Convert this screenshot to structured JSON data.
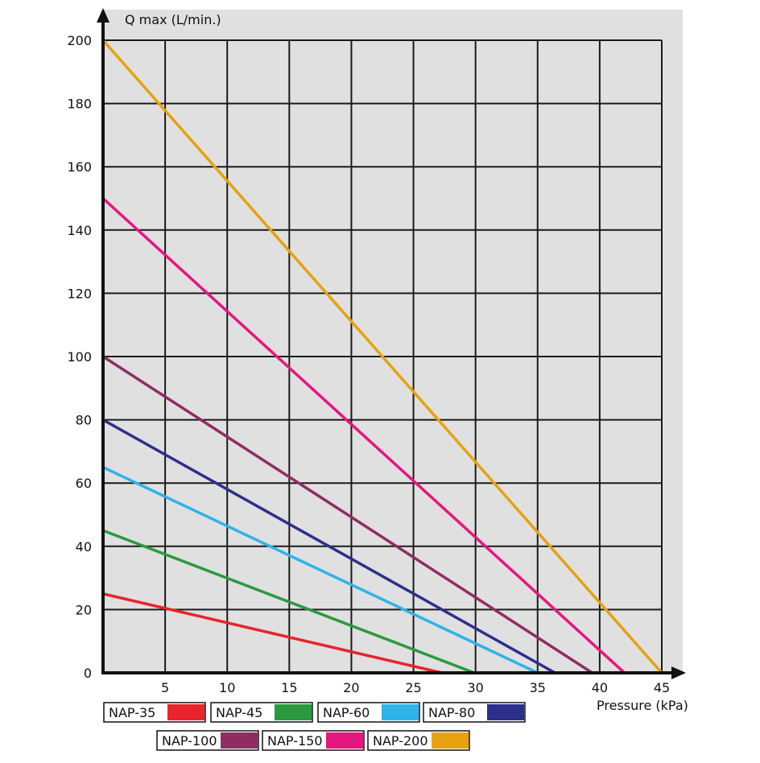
{
  "chart_data": {
    "type": "line",
    "title": "",
    "xlabel": "Pressure (kPa)",
    "ylabel": "Q max (L/min.)",
    "xlim": [
      0,
      45
    ],
    "ylim": [
      0,
      200
    ],
    "x_ticks": [
      5,
      10,
      15,
      20,
      25,
      30,
      35,
      40,
      45
    ],
    "x_tick_labels": [
      "5",
      "10",
      "15",
      "20",
      "25",
      "30",
      "35",
      "40",
      "45"
    ],
    "y_ticks": [
      0,
      20,
      40,
      60,
      80,
      100,
      120,
      140,
      160,
      180,
      200
    ],
    "y_tick_labels": [
      "0",
      "20",
      "40",
      "60",
      "80",
      "100",
      "120",
      "140",
      "160",
      "180",
      "200"
    ],
    "grid": true,
    "legend_position": "bottom",
    "series": [
      {
        "name": "NAP-35",
        "color": "#e8242c",
        "x": [
          0,
          27.3
        ],
        "y": [
          25,
          0
        ]
      },
      {
        "name": "NAP-45",
        "color": "#2b9a3f",
        "x": [
          0,
          29.9
        ],
        "y": [
          45,
          0
        ]
      },
      {
        "name": "NAP-60",
        "color": "#2fb3e8",
        "x": [
          0,
          35.0
        ],
        "y": [
          65,
          0
        ]
      },
      {
        "name": "NAP-80",
        "color": "#2c2f8c",
        "x": [
          0,
          36.4
        ],
        "y": [
          80,
          0
        ]
      },
      {
        "name": "NAP-100",
        "color": "#8e2d63",
        "x": [
          0,
          39.4
        ],
        "y": [
          100,
          0
        ]
      },
      {
        "name": "NAP-150",
        "color": "#e6167f",
        "x": [
          0,
          42.0
        ],
        "y": [
          150,
          0
        ]
      },
      {
        "name": "NAP-200",
        "color": "#e6a20e",
        "x": [
          0,
          45.0
        ],
        "y": [
          200,
          0
        ]
      }
    ]
  },
  "colors": {
    "plot_background": "#e0e0e0",
    "grid": "#1a1a1a",
    "axis": "#111111"
  }
}
